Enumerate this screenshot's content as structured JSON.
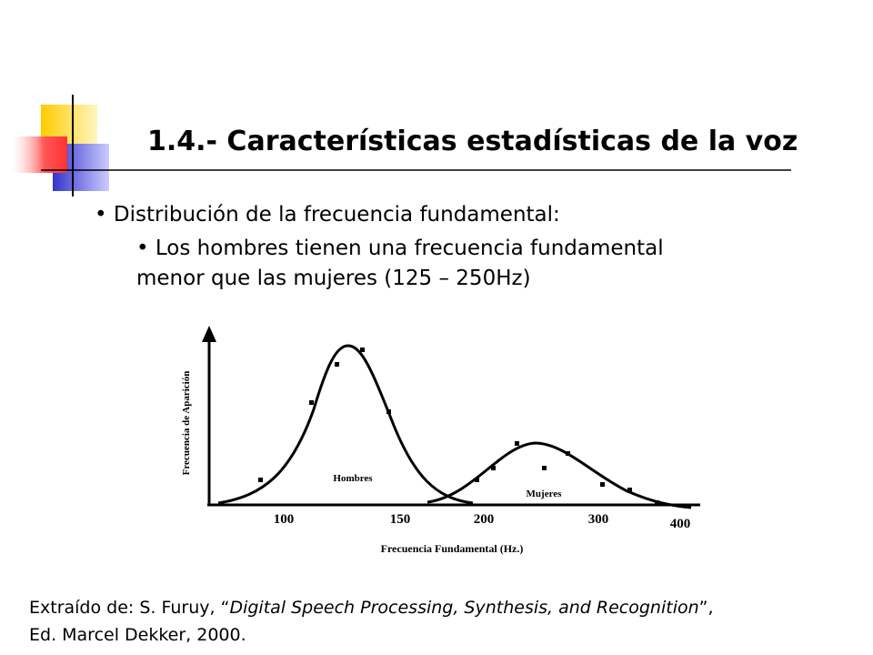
{
  "header": {
    "title": "1.4.- Características estadísticas de la voz"
  },
  "bullets": {
    "main": "Distribución de la frecuencia fundamental:",
    "sub_line1": "Los hombres tienen una frecuencia fundamental",
    "sub_line2": "menor que las mujeres (125 – 250Hz)"
  },
  "figure": {
    "y_label": "Frecuencia de Aparición",
    "x_label": "Frecuencia Fundamental (Hz.)",
    "x_tick_labels": [
      "100",
      "150",
      "200",
      "300",
      "400"
    ],
    "curve_labels": [
      "Hombres",
      "Mujeres"
    ]
  },
  "citation": {
    "prefix": "Extraído de: S. Furuy, “",
    "italic": "Digital Speech Processing, Synthesis, and Recognition",
    "suffix": "”,",
    "line2": "Ed. Marcel Dekker, 2000."
  }
}
